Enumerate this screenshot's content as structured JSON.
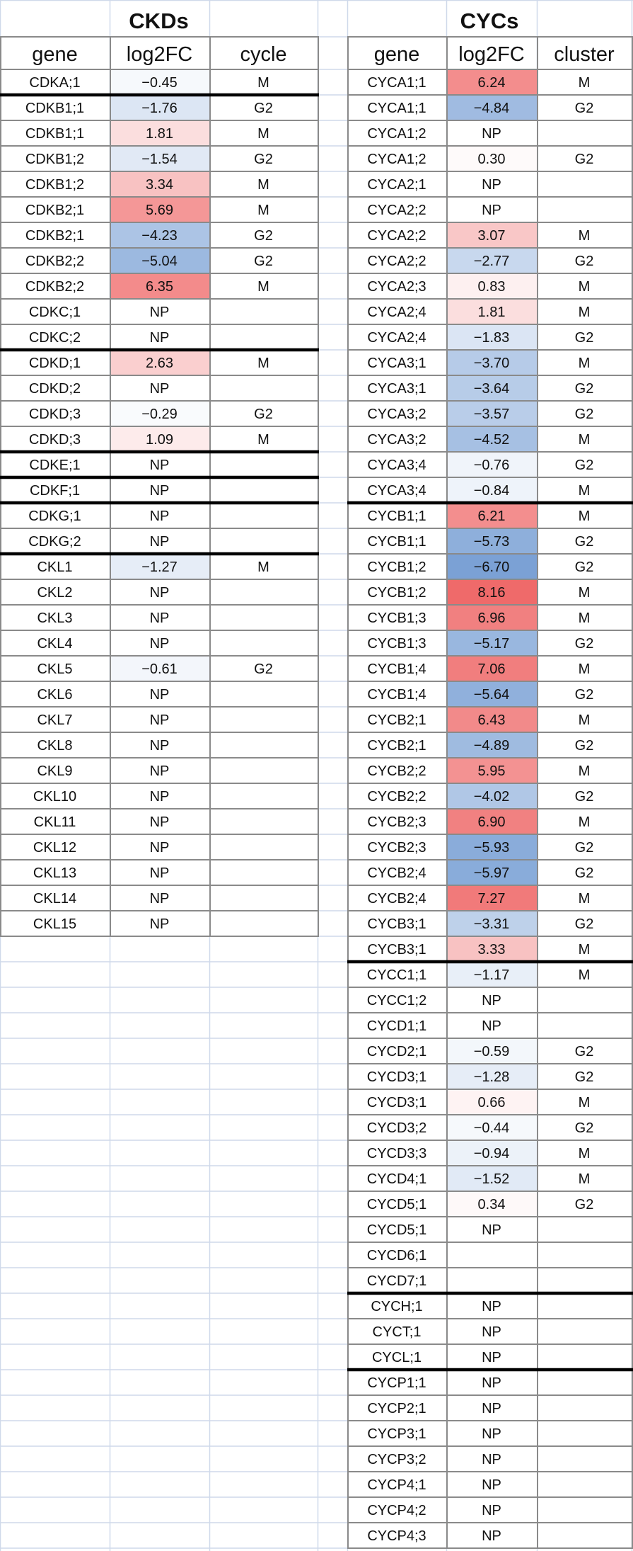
{
  "chart_data": [
    {
      "type": "table",
      "title": "CKDs",
      "columns": [
        "gene",
        "log2FC",
        "cycle"
      ],
      "rows": [
        [
          "CDKA;1",
          "−0.45",
          "M"
        ],
        [
          "CDKB1;1",
          "−1.76",
          "G2"
        ],
        [
          "CDKB1;1",
          "1.81",
          "M"
        ],
        [
          "CDKB1;2",
          "−1.54",
          "G2"
        ],
        [
          "CDKB1;2",
          "3.34",
          "M"
        ],
        [
          "CDKB2;1",
          "5.69",
          "M"
        ],
        [
          "CDKB2;1",
          "−4.23",
          "G2"
        ],
        [
          "CDKB2;2",
          "−5.04",
          "G2"
        ],
        [
          "CDKB2;2",
          "6.35",
          "M"
        ],
        [
          "CDKC;1",
          "NP",
          ""
        ],
        [
          "CDKC;2",
          "NP",
          ""
        ],
        [
          "CDKD;1",
          "2.63",
          "M"
        ],
        [
          "CDKD;2",
          "NP",
          ""
        ],
        [
          "CDKD;3",
          "−0.29",
          "G2"
        ],
        [
          "CDKD;3",
          "1.09",
          "M"
        ],
        [
          "CDKE;1",
          "NP",
          ""
        ],
        [
          "CDKF;1",
          "NP",
          ""
        ],
        [
          "CDKG;1",
          "NP",
          ""
        ],
        [
          "CDKG;2",
          "NP",
          ""
        ],
        [
          "CKL1",
          "−1.27",
          "M"
        ],
        [
          "CKL2",
          "NP",
          ""
        ],
        [
          "CKL3",
          "NP",
          ""
        ],
        [
          "CKL4",
          "NP",
          ""
        ],
        [
          "CKL5",
          "−0.61",
          "G2"
        ],
        [
          "CKL6",
          "NP",
          ""
        ],
        [
          "CKL7",
          "NP",
          ""
        ],
        [
          "CKL8",
          "NP",
          ""
        ],
        [
          "CKL9",
          "NP",
          ""
        ],
        [
          "CKL10",
          "NP",
          ""
        ],
        [
          "CKL11",
          "NP",
          ""
        ],
        [
          "CKL12",
          "NP",
          ""
        ],
        [
          "CKL13",
          "NP",
          ""
        ],
        [
          "CKL14",
          "NP",
          ""
        ],
        [
          "CKL15",
          "NP",
          ""
        ]
      ],
      "group_breaks_after_row": [
        0,
        10,
        14,
        15,
        16,
        18
      ]
    },
    {
      "type": "table",
      "title": "CYCs",
      "columns": [
        "gene",
        "log2FC",
        "cluster"
      ],
      "rows": [
        [
          "CYCA1;1",
          "6.24",
          "M"
        ],
        [
          "CYCA1;1",
          "−4.84",
          "G2"
        ],
        [
          "CYCA1;2",
          "NP",
          ""
        ],
        [
          "CYCA1;2",
          "0.30",
          "G2"
        ],
        [
          "CYCA2;1",
          "NP",
          ""
        ],
        [
          "CYCA2;2",
          "NP",
          ""
        ],
        [
          "CYCA2;2",
          "3.07",
          "M"
        ],
        [
          "CYCA2;2",
          "−2.77",
          "G2"
        ],
        [
          "CYCA2;3",
          "0.83",
          "M"
        ],
        [
          "CYCA2;4",
          "1.81",
          "M"
        ],
        [
          "CYCA2;4",
          "−1.83",
          "G2"
        ],
        [
          "CYCA3;1",
          "−3.70",
          "M"
        ],
        [
          "CYCA3;1",
          "−3.64",
          "G2"
        ],
        [
          "CYCA3;2",
          "−3.57",
          "G2"
        ],
        [
          "CYCA3;2",
          "−4.52",
          "M"
        ],
        [
          "CYCA3;4",
          "−0.76",
          "G2"
        ],
        [
          "CYCA3;4",
          "−0.84",
          "M"
        ],
        [
          "CYCB1;1",
          "6.21",
          "M"
        ],
        [
          "CYCB1;1",
          "−5.73",
          "G2"
        ],
        [
          "CYCB1;2",
          "−6.70",
          "G2"
        ],
        [
          "CYCB1;2",
          "8.16",
          "M"
        ],
        [
          "CYCB1;3",
          "6.96",
          "M"
        ],
        [
          "CYCB1;3",
          "−5.17",
          "G2"
        ],
        [
          "CYCB1;4",
          "7.06",
          "M"
        ],
        [
          "CYCB1;4",
          "−5.64",
          "G2"
        ],
        [
          "CYCB2;1",
          "6.43",
          "M"
        ],
        [
          "CYCB2;1",
          "−4.89",
          "G2"
        ],
        [
          "CYCB2;2",
          "5.95",
          "M"
        ],
        [
          "CYCB2;2",
          "−4.02",
          "G2"
        ],
        [
          "CYCB2;3",
          "6.90",
          "M"
        ],
        [
          "CYCB2;3",
          "−5.93",
          "G2"
        ],
        [
          "CYCB2;4",
          "−5.97",
          "G2"
        ],
        [
          "CYCB2;4",
          "7.27",
          "M"
        ],
        [
          "CYCB3;1",
          "−3.31",
          "G2"
        ],
        [
          "CYCB3;1",
          "3.33",
          "M"
        ],
        [
          "CYCC1;1",
          "−1.17",
          "M"
        ],
        [
          "CYCC1;2",
          "NP",
          ""
        ],
        [
          "CYCD1;1",
          "NP",
          ""
        ],
        [
          "CYCD2;1",
          "−0.59",
          "G2"
        ],
        [
          "CYCD3;1",
          "−1.28",
          "G2"
        ],
        [
          "CYCD3;1",
          "0.66",
          "M"
        ],
        [
          "CYCD3;2",
          "−0.44",
          "G2"
        ],
        [
          "CYCD3;3",
          "−0.94",
          "M"
        ],
        [
          "CYCD4;1",
          "−1.52",
          "M"
        ],
        [
          "CYCD5;1",
          "0.34",
          "G2"
        ],
        [
          "CYCD5;1",
          "NP",
          ""
        ],
        [
          "CYCD6;1",
          "",
          ""
        ],
        [
          "CYCD7;1",
          "",
          ""
        ],
        [
          "CYCH;1",
          "NP",
          ""
        ],
        [
          "CYCT;1",
          "NP",
          ""
        ],
        [
          "CYCL;1",
          "NP",
          ""
        ],
        [
          "CYCP1;1",
          "NP",
          ""
        ],
        [
          "CYCP2;1",
          "NP",
          ""
        ],
        [
          "CYCP3;1",
          "NP",
          ""
        ],
        [
          "CYCP3;2",
          "NP",
          ""
        ],
        [
          "CYCP4;1",
          "NP",
          ""
        ],
        [
          "CYCP4;2",
          "NP",
          ""
        ],
        [
          "CYCP4;3",
          "NP",
          ""
        ]
      ],
      "group_breaks_after_row": [
        16,
        34,
        47,
        50
      ]
    }
  ],
  "colors": {
    "positive": "#ef6a6a",
    "negative": "#5e8dcc",
    "neutral": "#ffffff",
    "grid": "#8a8a8a",
    "sheet_grid": "#cfd9ea",
    "group_separator": "#000000"
  },
  "color_scale_abs_max": 8.16
}
